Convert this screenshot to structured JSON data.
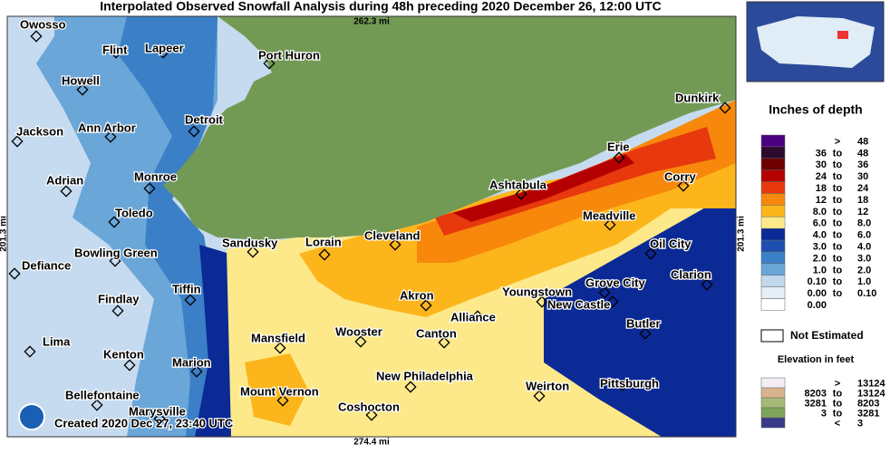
{
  "title": "Interpolated Observed Snowfall Analysis during 48h preceding 2020 December 26, 12:00 UTC",
  "scale": {
    "top": "262.3 mi",
    "bottom": "274.4 mi",
    "left": "201.3 mi",
    "right": "201.3 mi"
  },
  "credit": "Created 2020 Dec 27, 23:40 UTC",
  "cities": [
    "Owosso",
    "Flint",
    "Lapeer",
    "Port Huron",
    "Howell",
    "Detroit",
    "Ann Arbor",
    "Jackson",
    "Monroe",
    "Adrian",
    "Toledo",
    "Sandusky",
    "Lorain",
    "Cleveland",
    "Ashtabula",
    "Erie",
    "Dunkirk",
    "Corry",
    "Meadville",
    "Oil City",
    "Bowling Green",
    "Defiance",
    "Clarion",
    "Grove City",
    "Youngstown",
    "New Castle",
    "Akron",
    "Findlay",
    "Tiffin",
    "Alliance",
    "Butler",
    "Wooster",
    "Mansfield",
    "Canton",
    "Lima",
    "Kenton",
    "Marion",
    "Pittsburgh",
    "New Philadelphia",
    "Weirton",
    "Mount Vernon",
    "Bellefontaine",
    "Coshocton",
    "Marysville"
  ],
  "legend": {
    "title": "Inches of depth",
    "rows": [
      {
        "color": "#4b0082",
        "text": [
          ">",
          "48"
        ]
      },
      {
        "color": "#2e0a2e",
        "text": [
          "36",
          "to",
          "48"
        ]
      },
      {
        "color": "#6e0000",
        "text": [
          "30",
          "to",
          "36"
        ]
      },
      {
        "color": "#b40000",
        "text": [
          "24",
          "to",
          "30"
        ]
      },
      {
        "color": "#e8380d",
        "text": [
          "18",
          "to",
          "24"
        ]
      },
      {
        "color": "#f7880c",
        "text": [
          "12",
          "to",
          "18"
        ]
      },
      {
        "color": "#fdb51c",
        "text": [
          "8.0",
          "to",
          "12"
        ]
      },
      {
        "color": "#fde98a",
        "text": [
          "6.0",
          "to",
          "8.0"
        ]
      },
      {
        "color": "#0b2a96",
        "text": [
          "4.0",
          "to",
          "6.0"
        ]
      },
      {
        "color": "#1d4fae",
        "text": [
          "3.0",
          "to",
          "4.0"
        ]
      },
      {
        "color": "#3b7fc6",
        "text": [
          "2.0",
          "to",
          "3.0"
        ]
      },
      {
        "color": "#6aa6d8",
        "text": [
          "1.0",
          "to",
          "2.0"
        ]
      },
      {
        "color": "#c2d8ec",
        "text": [
          "0.10",
          "to",
          "1.0"
        ]
      },
      {
        "color": "#e4eef7",
        "text": [
          "0.00",
          "to",
          "0.10"
        ]
      },
      {
        "color": "#ffffff",
        "text": [
          "0.00"
        ]
      }
    ],
    "not_estimated": "Not Estimated"
  },
  "elevation": {
    "title": "Elevation in feet",
    "rows": [
      {
        "color": "#f4eef4",
        "text": [
          ">",
          "13124"
        ]
      },
      {
        "color": "#d8b48c",
        "text": [
          "8203",
          "to",
          "13124"
        ]
      },
      {
        "color": "#a8b878",
        "text": [
          "3281",
          "to",
          "8203"
        ]
      },
      {
        "color": "#7ea35a",
        "text": [
          "3",
          "to",
          "3281"
        ]
      },
      {
        "color": "#3a3a8a",
        "text": [
          "<",
          "3"
        ]
      }
    ]
  }
}
